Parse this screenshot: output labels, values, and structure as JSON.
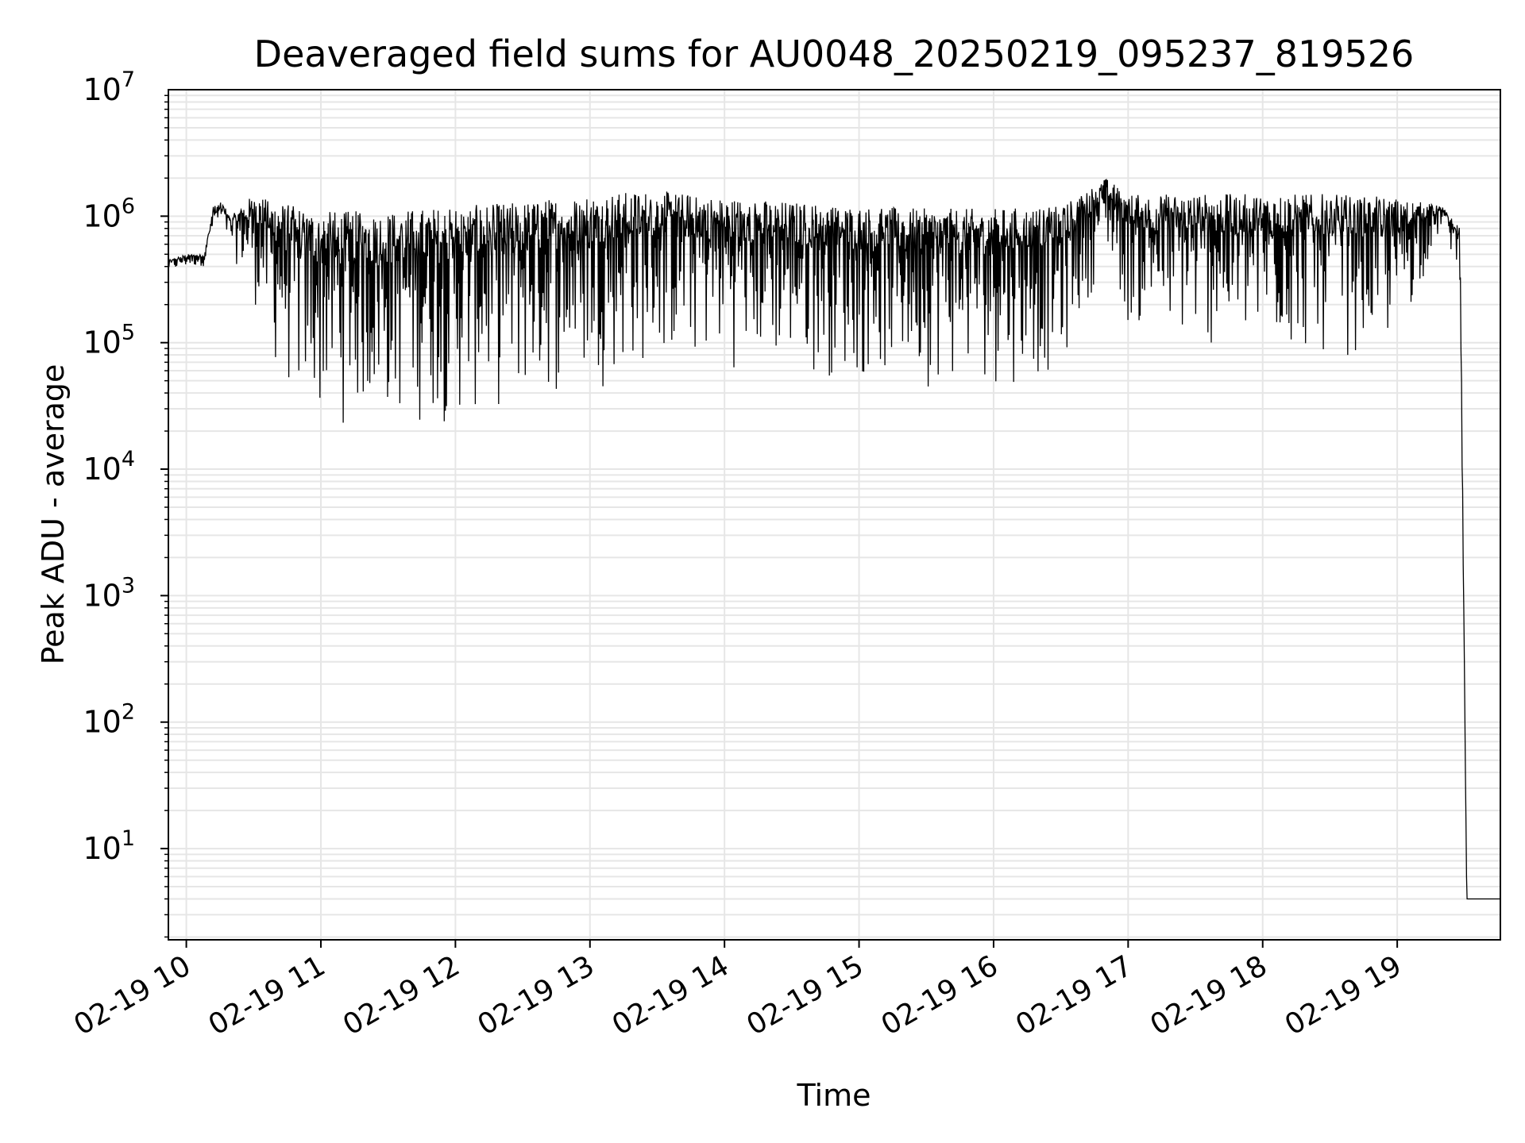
{
  "chart_data": {
    "type": "line",
    "title": "Deaveraged field sums for AU0048_20250219_095237_819526",
    "xlabel": "Time",
    "ylabel": "Peak ADU - average",
    "y_scale": "log",
    "ylim": [
      1.9,
      10000000
    ],
    "xlim": [
      "2025-02-19 09:52",
      "2025-02-19 19:46"
    ],
    "grid": true,
    "x_ticks": [
      "02-19 10",
      "02-19 11",
      "02-19 12",
      "02-19 13",
      "02-19 14",
      "02-19 15",
      "02-19 16",
      "02-19 17",
      "02-19 18",
      "02-19 19"
    ],
    "y_ticks": [
      {
        "base": "10",
        "exp": "1"
      },
      {
        "base": "10",
        "exp": "2"
      },
      {
        "base": "10",
        "exp": "3"
      },
      {
        "base": "10",
        "exp": "4"
      },
      {
        "base": "10",
        "exp": "5"
      },
      {
        "base": "10",
        "exp": "6"
      },
      {
        "base": "10",
        "exp": "7"
      }
    ],
    "line_color": "#000000",
    "grid_color": "#e6e6e6",
    "series": [
      {
        "x": [
          "2025-02-19 09:52",
          "2025-02-19 10:00",
          "2025-02-19 10:08",
          "2025-02-19 10:12",
          "2025-02-19 10:16",
          "2025-02-19 10:20",
          "2025-02-19 10:30",
          "2025-02-19 10:40",
          "2025-02-19 10:50",
          "2025-02-19 11:00",
          "2025-02-19 11:30",
          "2025-02-19 12:00",
          "2025-02-19 12:30",
          "2025-02-19 13:00",
          "2025-02-19 13:30",
          "2025-02-19 14:00",
          "2025-02-19 14:30",
          "2025-02-19 15:00",
          "2025-02-19 15:30",
          "2025-02-19 16:00",
          "2025-02-19 16:30",
          "2025-02-19 16:50",
          "2025-02-19 17:00",
          "2025-02-19 17:30",
          "2025-02-19 18:00",
          "2025-02-19 18:30",
          "2025-02-19 19:00",
          "2025-02-19 19:20",
          "2025-02-19 19:28",
          "2025-02-19 19:31",
          "2025-02-19 19:46"
        ],
        "upper": [
          450000,
          500000,
          500000,
          1200000,
          1300000,
          1000000,
          1500000,
          1300000,
          1200000,
          1100000,
          1100000,
          1200000,
          1300000,
          1500000,
          1600000,
          1400000,
          1300000,
          1200000,
          1150000,
          1150000,
          1200000,
          2000000,
          1500000,
          1500000,
          1500000,
          1500000,
          1400000,
          1200000,
          800000,
          4,
          4
        ],
        "lower": [
          350000,
          380000,
          400000,
          700000,
          700000,
          500000,
          200000,
          50000,
          25000,
          20000,
          20000,
          20000,
          28000,
          40000,
          60000,
          60000,
          55000,
          45000,
          42000,
          42000,
          50000,
          500000,
          120000,
          80000,
          70000,
          70000,
          80000,
          800000,
          300000,
          4,
          4
        ]
      }
    ]
  }
}
